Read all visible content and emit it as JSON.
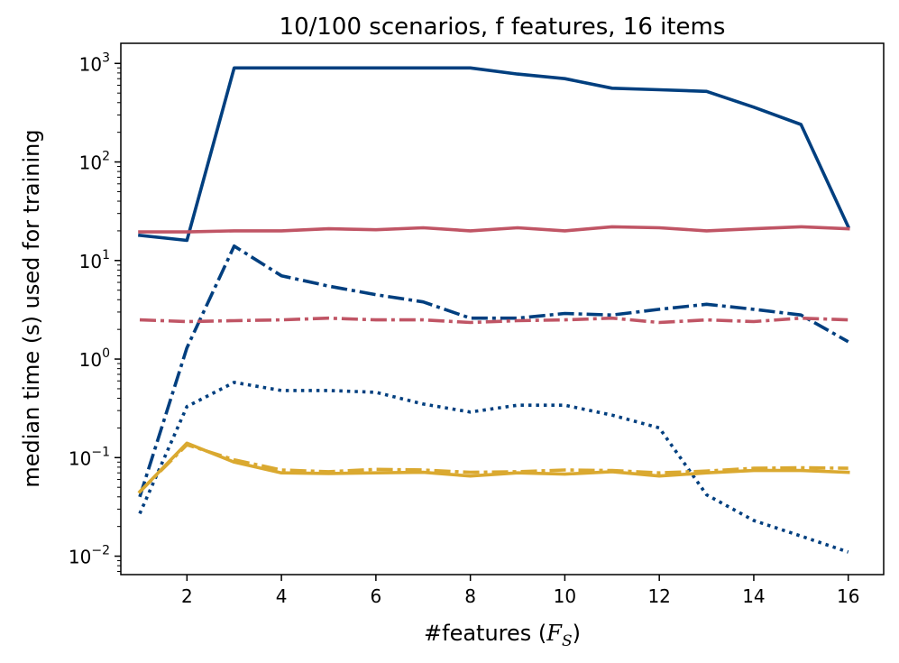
{
  "chart_data": {
    "type": "line",
    "title": "10/100 scenarios, f features, 16 items",
    "xlabel": "#features (",
    "xlabel_math": "F",
    "xlabel_math_sub": "S",
    "xlabel_suffix": ")",
    "ylabel": "median time (s) used for training",
    "y_scale": "log",
    "xlim": [
      0.6,
      16.75
    ],
    "ylim": [
      0.0065,
      1600
    ],
    "x_ticks": [
      2,
      4,
      6,
      8,
      10,
      12,
      14,
      16
    ],
    "y_ticks": [
      {
        "value": 0.01,
        "base": "10",
        "exp": "−2"
      },
      {
        "value": 0.1,
        "base": "10",
        "exp": "−1"
      },
      {
        "value": 1,
        "base": "10",
        "exp": "0"
      },
      {
        "value": 10,
        "base": "10",
        "exp": "1"
      },
      {
        "value": 100,
        "base": "10",
        "exp": "2"
      },
      {
        "value": 1000,
        "base": "10",
        "exp": "3"
      }
    ],
    "grid": false,
    "x": [
      1,
      2,
      3,
      4,
      5,
      6,
      7,
      8,
      9,
      10,
      11,
      12,
      13,
      14,
      15,
      16
    ],
    "series": [
      {
        "color": "#003f7f",
        "dash": "solid",
        "values": [
          18,
          16,
          900,
          900,
          900,
          900,
          900,
          900,
          780,
          700,
          560,
          540,
          520,
          360,
          240,
          22
        ]
      },
      {
        "color": "#c05565",
        "dash": "solid",
        "values": [
          19.5,
          19.5,
          20,
          20,
          21,
          20.5,
          21.5,
          20,
          21.5,
          20,
          22,
          21.5,
          20,
          21,
          22,
          21
        ]
      },
      {
        "color": "#003f7f",
        "dash": "dashdot",
        "values": [
          0.04,
          1.3,
          14,
          7,
          5.5,
          4.5,
          3.8,
          2.6,
          2.6,
          2.9,
          2.8,
          3.2,
          3.6,
          3.2,
          2.8,
          1.5
        ]
      },
      {
        "color": "#c05565",
        "dash": "dashdot",
        "values": [
          2.5,
          2.4,
          2.45,
          2.5,
          2.6,
          2.5,
          2.5,
          2.35,
          2.45,
          2.5,
          2.6,
          2.35,
          2.5,
          2.4,
          2.6,
          2.5
        ]
      },
      {
        "color": "#003f7f",
        "dash": "dotted",
        "values": [
          0.027,
          0.33,
          0.58,
          0.48,
          0.48,
          0.46,
          0.35,
          0.29,
          0.34,
          0.34,
          0.27,
          0.2,
          0.042,
          0.023,
          0.016,
          0.011
        ]
      },
      {
        "color": "#daa930",
        "dash": "dashdot",
        "values": [
          0.045,
          0.135,
          0.095,
          0.075,
          0.072,
          0.076,
          0.075,
          0.071,
          0.072,
          0.075,
          0.074,
          0.07,
          0.073,
          0.078,
          0.079,
          0.078
        ]
      },
      {
        "color": "#daa930",
        "dash": "solid",
        "values": [
          0.045,
          0.14,
          0.09,
          0.07,
          0.069,
          0.07,
          0.071,
          0.065,
          0.07,
          0.068,
          0.072,
          0.065,
          0.07,
          0.074,
          0.074,
          0.071
        ]
      }
    ]
  }
}
